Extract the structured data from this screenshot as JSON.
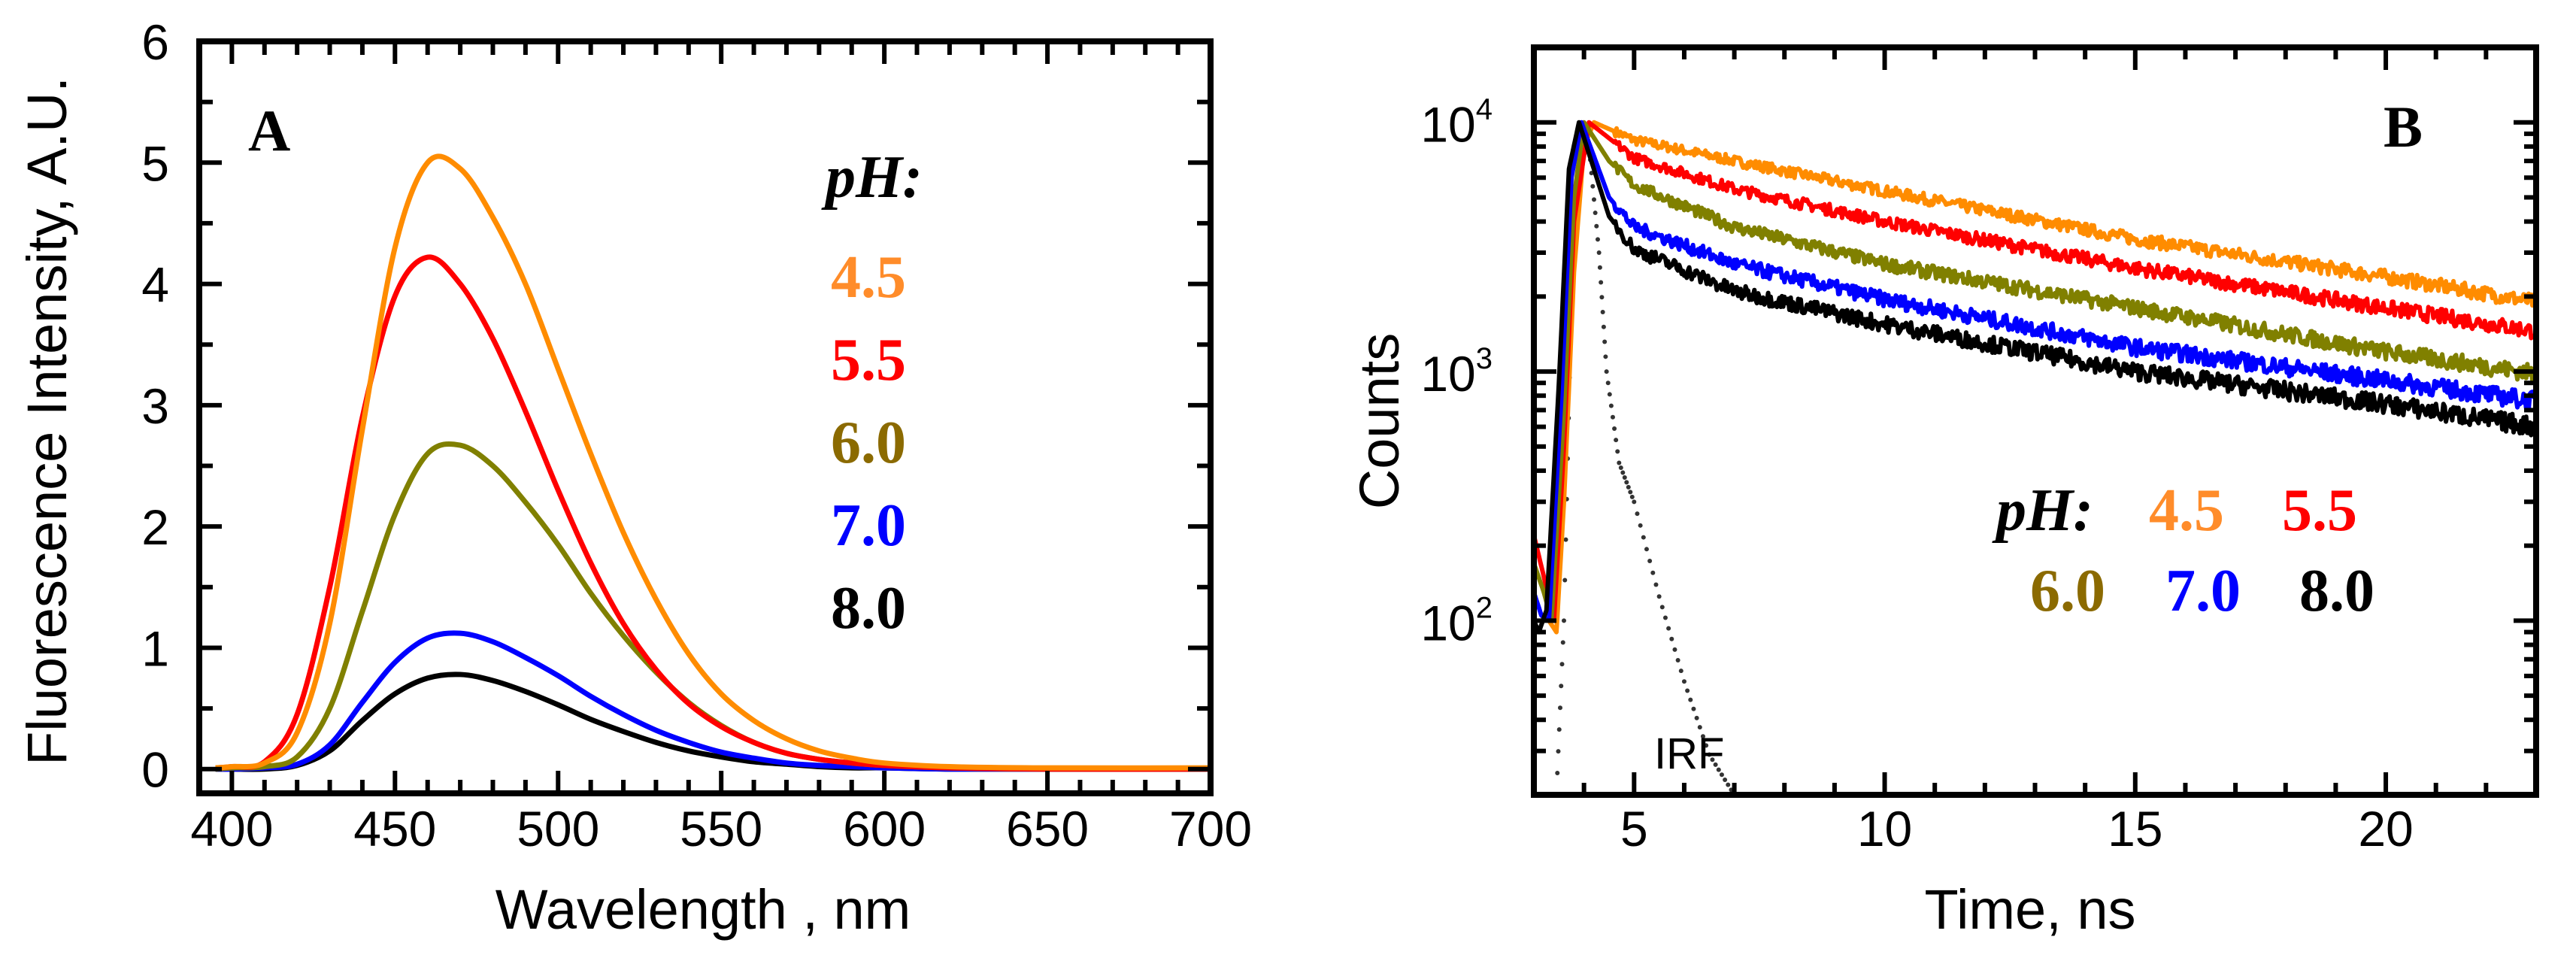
{
  "chart_data": [
    {
      "type": "line",
      "panel": "A",
      "xlabel": "Wavelength , nm",
      "ylabel": "Fluorescence Intensity, A.U.",
      "xlim": [
        390,
        700
      ],
      "ylim": [
        -0.2,
        6
      ],
      "xticks": [
        400,
        450,
        500,
        550,
        600,
        650,
        700
      ],
      "yticks": [
        0,
        1,
        2,
        3,
        4,
        5,
        6
      ],
      "legend": {
        "title": "pH:",
        "placement": "upper-right",
        "entries": [
          "4.5",
          "5.5",
          "6.0",
          "7.0",
          "8.0"
        ]
      },
      "x": [
        395,
        400,
        410,
        420,
        430,
        440,
        450,
        460,
        470,
        480,
        490,
        500,
        510,
        520,
        530,
        540,
        550,
        560,
        570,
        580,
        590,
        600,
        620,
        650,
        700
      ],
      "series": [
        {
          "name": "4.5",
          "color": "#ff8c00",
          "legend_color": "#ff8c2a",
          "values": [
            0.01,
            0.02,
            0.05,
            0.3,
            1.2,
            2.8,
            4.3,
            5.0,
            4.95,
            4.55,
            4.0,
            3.3,
            2.6,
            1.95,
            1.4,
            0.95,
            0.62,
            0.4,
            0.25,
            0.15,
            0.09,
            0.05,
            0.02,
            0.01,
            0.01
          ]
        },
        {
          "name": "5.5",
          "color": "#ff0000",
          "legend_color": "#ff0000",
          "values": [
            0.01,
            0.02,
            0.06,
            0.45,
            1.5,
            2.9,
            3.9,
            4.22,
            4.0,
            3.55,
            2.95,
            2.3,
            1.7,
            1.2,
            0.82,
            0.54,
            0.35,
            0.22,
            0.13,
            0.08,
            0.05,
            0.03,
            0.01,
            0,
            0
          ]
        },
        {
          "name": "6.0",
          "color": "#808000",
          "legend_color": "#8b6a00",
          "values": [
            0,
            0.01,
            0.02,
            0.1,
            0.5,
            1.3,
            2.1,
            2.6,
            2.67,
            2.5,
            2.2,
            1.85,
            1.45,
            1.1,
            0.8,
            0.55,
            0.36,
            0.22,
            0.13,
            0.08,
            0.05,
            0.03,
            0.01,
            0,
            0
          ]
        },
        {
          "name": "7.0",
          "color": "#0000ff",
          "legend_color": "#0000ff",
          "values": [
            0,
            0,
            0.01,
            0.04,
            0.2,
            0.55,
            0.88,
            1.08,
            1.12,
            1.05,
            0.92,
            0.77,
            0.6,
            0.45,
            0.32,
            0.22,
            0.14,
            0.09,
            0.05,
            0.03,
            0.02,
            0.01,
            0,
            0,
            0
          ]
        },
        {
          "name": "8.0",
          "color": "#000000",
          "legend_color": "#000000",
          "values": [
            0,
            0,
            0,
            0.03,
            0.15,
            0.4,
            0.62,
            0.75,
            0.78,
            0.73,
            0.64,
            0.53,
            0.41,
            0.31,
            0.22,
            0.15,
            0.1,
            0.06,
            0.04,
            0.02,
            0.01,
            0.01,
            0,
            0,
            0
          ]
        }
      ]
    },
    {
      "type": "line",
      "panel": "B",
      "xlabel": "Time, ns",
      "ylabel": "Counts",
      "xlim": [
        3,
        23
      ],
      "ylim": [
        20,
        20000
      ],
      "yscale": "log",
      "xticks": [
        5,
        10,
        15,
        20
      ],
      "yticks": [
        {
          "value": 100,
          "base": "10",
          "exp": "2"
        },
        {
          "value": 1000,
          "base": "10",
          "exp": "3"
        },
        {
          "value": 10000,
          "base": "10",
          "exp": "4"
        }
      ],
      "legend": {
        "title": "pH:",
        "placement": "center-right",
        "entries": [
          "4.5",
          "5.5",
          "6.0",
          "7.0",
          "8.0"
        ]
      },
      "annotation": "IRF",
      "series": [
        {
          "name": "4.5",
          "color": "#ff8c00",
          "legend_color": "#ff8c2a",
          "points": [
            [
              3.3,
              100
            ],
            [
              3.45,
              90
            ],
            [
              3.6,
              300
            ],
            [
              3.8,
              2500
            ],
            [
              4.0,
              8000
            ],
            [
              4.2,
              10000
            ],
            [
              5,
              8500
            ],
            [
              7,
              7000
            ],
            [
              10,
              5300
            ],
            [
              15,
              3400
            ],
            [
              20,
              2400
            ],
            [
              23,
              1900
            ]
          ]
        },
        {
          "name": "5.5",
          "color": "#ff0000",
          "legend_color": "#ff0000",
          "points": [
            [
              3.0,
              220
            ],
            [
              3.2,
              150
            ],
            [
              3.4,
              100
            ],
            [
              3.6,
              500
            ],
            [
              3.8,
              4000
            ],
            [
              4.1,
              10000
            ],
            [
              5,
              7200
            ],
            [
              7,
              5400
            ],
            [
              10,
              4000
            ],
            [
              15,
              2600
            ],
            [
              20,
              1800
            ],
            [
              23,
              1450
            ]
          ]
        },
        {
          "name": "6.0",
          "color": "#808000",
          "legend_color": "#8b6a00",
          "points": [
            [
              3.0,
              170
            ],
            [
              3.2,
              130
            ],
            [
              3.35,
              100
            ],
            [
              3.6,
              700
            ],
            [
              3.8,
              5000
            ],
            [
              4.0,
              10000
            ],
            [
              4.5,
              7000
            ],
            [
              5,
              5600
            ],
            [
              7,
              3800
            ],
            [
              10,
              2700
            ],
            [
              15,
              1800
            ],
            [
              20,
              1200
            ],
            [
              23,
              980
            ]
          ]
        },
        {
          "name": "7.0",
          "color": "#0000ff",
          "legend_color": "#0000ff",
          "points": [
            [
              3.0,
              130
            ],
            [
              3.15,
              105
            ],
            [
              3.3,
              100
            ],
            [
              3.55,
              800
            ],
            [
              3.75,
              6000
            ],
            [
              3.95,
              10000
            ],
            [
              4.5,
              5000
            ],
            [
              5,
              3800
            ],
            [
              7,
              2700
            ],
            [
              10,
              1950
            ],
            [
              15,
              1250
            ],
            [
              20,
              920
            ],
            [
              23,
              760
            ]
          ]
        },
        {
          "name": "8.0",
          "color": "#000000",
          "legend_color": "#000000",
          "points": [
            [
              3.0,
              100
            ],
            [
              3.1,
              90
            ],
            [
              3.25,
              110
            ],
            [
              3.5,
              900
            ],
            [
              3.7,
              6500
            ],
            [
              3.9,
              10000
            ],
            [
              4.5,
              4200
            ],
            [
              5,
              3100
            ],
            [
              7,
              2100
            ],
            [
              10,
              1550
            ],
            [
              15,
              1000
            ],
            [
              20,
              740
            ],
            [
              23,
              600
            ]
          ]
        }
      ],
      "irf": {
        "name": "IRF",
        "color": "#333333",
        "points": [
          [
            3.45,
            20
          ],
          [
            3.6,
            100
          ],
          [
            3.75,
            2000
          ],
          [
            3.9,
            9000
          ],
          [
            4.1,
            8000
          ],
          [
            4.3,
            3000
          ],
          [
            4.45,
            1000
          ],
          [
            4.7,
            430
          ],
          [
            5.0,
            300
          ],
          [
            5.5,
            125
          ],
          [
            6.0,
            57
          ],
          [
            6.5,
            29
          ],
          [
            7.0,
            20
          ]
        ]
      }
    }
  ]
}
